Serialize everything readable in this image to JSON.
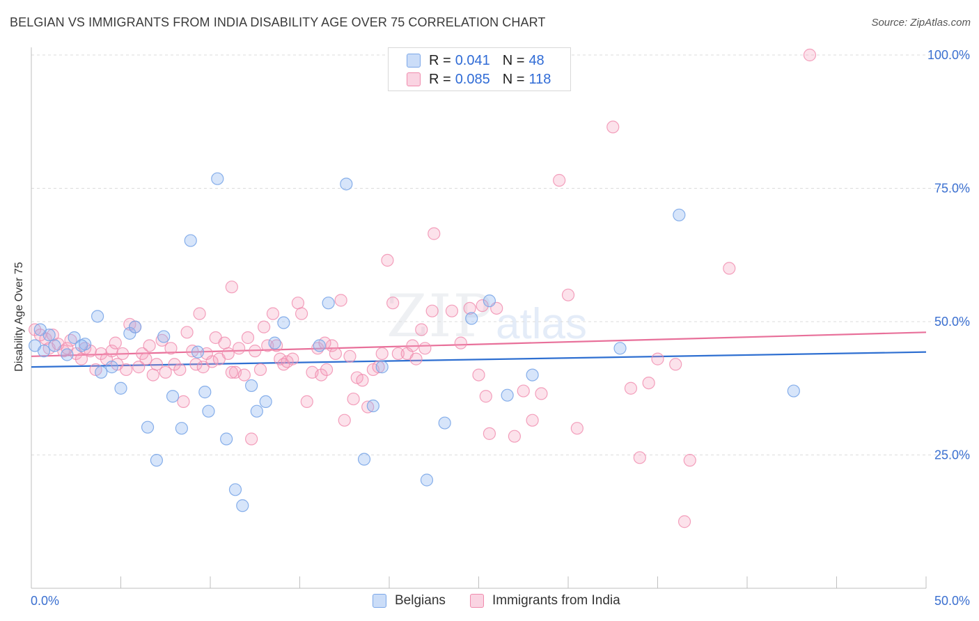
{
  "title": "BELGIAN VS IMMIGRANTS FROM INDIA DISABILITY AGE OVER 75 CORRELATION CHART",
  "source": "Source: ZipAtlas.com",
  "watermark": {
    "zip": "ZIP",
    "atlas": "atlas"
  },
  "colors": {
    "belgians": "#7aa6e8",
    "belgians_fill": "rgba(140,180,240,0.35)",
    "india": "#f08aac",
    "india_fill": "rgba(245,160,190,0.30)",
    "blue_line": "#2e6fd1",
    "pink_line": "#e8709a",
    "tick_text": "#3a6fd0"
  },
  "legend": {
    "rows": [
      {
        "r_label": "R =",
        "r_value": "0.041",
        "n_label": "N =",
        "n_value": "48"
      },
      {
        "r_label": "R =",
        "r_value": "0.085",
        "n_label": "N =",
        "n_value": "118"
      }
    ]
  },
  "bottom_legend": {
    "belgians": "Belgians",
    "india": "Immigrants from India"
  },
  "chart_data": {
    "type": "scatter",
    "title": "BELGIAN VS IMMIGRANTS FROM INDIA DISABILITY AGE OVER 75 CORRELATION CHART",
    "xlabel": "",
    "ylabel": "Disability Age Over 75",
    "xlim": [
      0,
      50
    ],
    "ylim": [
      0,
      102
    ],
    "x_tick_labels": [
      "0.0%",
      "50.0%"
    ],
    "y_tick_labels": [
      "25.0%",
      "50.0%",
      "75.0%",
      "100.0%"
    ],
    "y_ticks": [
      25,
      50,
      75,
      100
    ],
    "grid": true,
    "legend_position": "top-center",
    "series": [
      {
        "name": "Belgians",
        "trend": {
          "x": [
            0,
            50
          ],
          "y": [
            41.5,
            44.3
          ]
        },
        "points": [
          [
            0.2,
            45.5
          ],
          [
            0.7,
            44.5
          ],
          [
            1.0,
            47.5
          ],
          [
            1.3,
            45.5
          ],
          [
            2.0,
            43.8
          ],
          [
            2.4,
            47.0
          ],
          [
            3.0,
            45.8
          ],
          [
            3.7,
            51.0
          ],
          [
            3.9,
            40.5
          ],
          [
            4.5,
            41.5
          ],
          [
            5.0,
            37.5
          ],
          [
            5.5,
            47.8
          ],
          [
            5.8,
            49.0
          ],
          [
            6.5,
            30.2
          ],
          [
            7.0,
            24.0
          ],
          [
            7.4,
            47.2
          ],
          [
            7.9,
            36.0
          ],
          [
            8.4,
            30.0
          ],
          [
            8.9,
            65.2
          ],
          [
            9.3,
            44.3
          ],
          [
            9.7,
            36.8
          ],
          [
            9.9,
            33.2
          ],
          [
            10.4,
            76.8
          ],
          [
            10.9,
            28.0
          ],
          [
            11.4,
            18.5
          ],
          [
            11.8,
            15.5
          ],
          [
            12.3,
            38.0
          ],
          [
            12.6,
            33.2
          ],
          [
            13.1,
            35.0
          ],
          [
            13.6,
            46.0
          ],
          [
            14.1,
            49.8
          ],
          [
            16.1,
            45.5
          ],
          [
            16.6,
            53.5
          ],
          [
            17.6,
            75.8
          ],
          [
            18.6,
            24.2
          ],
          [
            19.1,
            34.2
          ],
          [
            19.6,
            41.5
          ],
          [
            22.1,
            20.3
          ],
          [
            23.1,
            31.0
          ],
          [
            24.6,
            50.6
          ],
          [
            25.6,
            53.9
          ],
          [
            26.6,
            36.2
          ],
          [
            28.0,
            40.0
          ],
          [
            32.9,
            45.0
          ],
          [
            36.2,
            70.0
          ],
          [
            42.6,
            37.0
          ],
          [
            0.5,
            48.5
          ],
          [
            2.8,
            45.5
          ]
        ]
      },
      {
        "name": "Immigrants from India",
        "trend": {
          "x": [
            0,
            50
          ],
          "y": [
            43.5,
            48.0
          ]
        },
        "points": [
          [
            0.2,
            48.5
          ],
          [
            0.5,
            47.5
          ],
          [
            0.8,
            46.8
          ],
          [
            1.0,
            45.0
          ],
          [
            1.2,
            47.5
          ],
          [
            1.5,
            45.8
          ],
          [
            1.8,
            44.5
          ],
          [
            2.0,
            45.0
          ],
          [
            2.2,
            46.5
          ],
          [
            2.5,
            44.0
          ],
          [
            2.8,
            43.0
          ],
          [
            3.0,
            45.0
          ],
          [
            3.3,
            44.5
          ],
          [
            3.6,
            41.0
          ],
          [
            3.9,
            44.0
          ],
          [
            4.2,
            43.0
          ],
          [
            4.5,
            44.5
          ],
          [
            4.8,
            42.0
          ],
          [
            5.1,
            44.0
          ],
          [
            5.3,
            41.0
          ],
          [
            5.5,
            49.5
          ],
          [
            5.8,
            49.0
          ],
          [
            6.0,
            41.5
          ],
          [
            6.2,
            44.0
          ],
          [
            6.4,
            43.0
          ],
          [
            6.6,
            45.5
          ],
          [
            6.8,
            40.0
          ],
          [
            7.0,
            42.0
          ],
          [
            7.3,
            46.5
          ],
          [
            7.5,
            40.5
          ],
          [
            7.8,
            45.0
          ],
          [
            8.0,
            42.0
          ],
          [
            8.3,
            41.0
          ],
          [
            8.5,
            35.0
          ],
          [
            8.7,
            48.0
          ],
          [
            9.0,
            44.5
          ],
          [
            9.2,
            42.0
          ],
          [
            9.4,
            51.5
          ],
          [
            9.6,
            41.5
          ],
          [
            9.8,
            44.0
          ],
          [
            10.1,
            42.5
          ],
          [
            10.3,
            47.0
          ],
          [
            10.5,
            43.0
          ],
          [
            10.8,
            46.0
          ],
          [
            11.0,
            44.0
          ],
          [
            11.2,
            56.5
          ],
          [
            11.4,
            40.5
          ],
          [
            11.6,
            45.0
          ],
          [
            11.9,
            40.0
          ],
          [
            12.1,
            47.0
          ],
          [
            12.3,
            28.0
          ],
          [
            12.5,
            44.5
          ],
          [
            12.8,
            41.0
          ],
          [
            13.0,
            49.0
          ],
          [
            13.2,
            45.5
          ],
          [
            13.5,
            51.5
          ],
          [
            13.7,
            45.5
          ],
          [
            13.9,
            43.0
          ],
          [
            14.1,
            42.0
          ],
          [
            14.3,
            42.5
          ],
          [
            14.6,
            43.0
          ],
          [
            14.9,
            53.5
          ],
          [
            15.1,
            51.5
          ],
          [
            15.4,
            35.0
          ],
          [
            15.7,
            40.5
          ],
          [
            16.0,
            45.0
          ],
          [
            16.2,
            40.0
          ],
          [
            16.5,
            41.0
          ],
          [
            16.8,
            45.5
          ],
          [
            17.0,
            44.0
          ],
          [
            17.3,
            54.0
          ],
          [
            17.5,
            31.5
          ],
          [
            17.8,
            43.5
          ],
          [
            18.0,
            35.5
          ],
          [
            18.2,
            39.5
          ],
          [
            18.5,
            39.0
          ],
          [
            18.8,
            34.0
          ],
          [
            19.1,
            41.0
          ],
          [
            19.4,
            41.5
          ],
          [
            19.6,
            44.0
          ],
          [
            19.9,
            61.5
          ],
          [
            20.2,
            53.5
          ],
          [
            20.5,
            44.0
          ],
          [
            21.0,
            44.0
          ],
          [
            21.3,
            45.5
          ],
          [
            21.5,
            43.0
          ],
          [
            21.8,
            48.5
          ],
          [
            22.0,
            45.0
          ],
          [
            22.4,
            52.0
          ],
          [
            23.5,
            52.0
          ],
          [
            24.0,
            46.0
          ],
          [
            24.5,
            52.5
          ],
          [
            25.0,
            40.0
          ],
          [
            25.4,
            36.0
          ],
          [
            25.6,
            29.0
          ],
          [
            26.0,
            52.5
          ],
          [
            27.0,
            28.5
          ],
          [
            27.5,
            37.0
          ],
          [
            28.0,
            31.5
          ],
          [
            28.5,
            36.5
          ],
          [
            29.5,
            76.5
          ],
          [
            30.0,
            55.0
          ],
          [
            30.5,
            30.0
          ],
          [
            32.5,
            86.5
          ],
          [
            33.5,
            37.5
          ],
          [
            34.0,
            24.5
          ],
          [
            34.5,
            38.5
          ],
          [
            35.0,
            43.0
          ],
          [
            36.0,
            42.0
          ],
          [
            36.5,
            12.5
          ],
          [
            36.8,
            24.0
          ],
          [
            39.0,
            60.0
          ],
          [
            43.5,
            100.0
          ],
          [
            22.5,
            66.5
          ],
          [
            25.2,
            53.0
          ],
          [
            11.2,
            40.5
          ],
          [
            16.4,
            46.0
          ],
          [
            4.7,
            46.0
          ]
        ]
      }
    ]
  }
}
